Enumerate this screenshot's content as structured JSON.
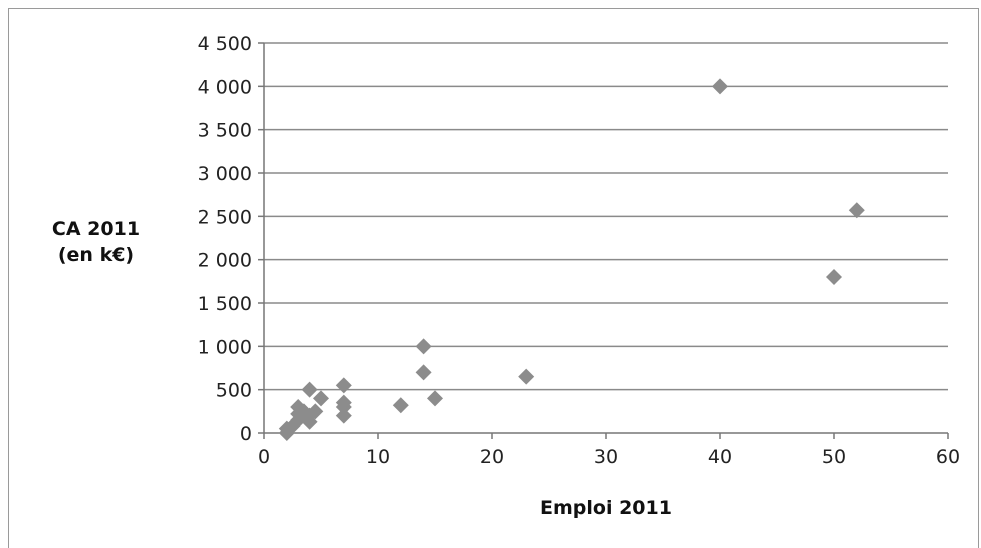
{
  "chart_data": {
    "type": "scatter",
    "title": "",
    "xlabel": "Emploi 2011",
    "ylabel": [
      "CA 2011",
      "(en k€)"
    ],
    "xlim": [
      0,
      60
    ],
    "ylim": [
      0,
      4500
    ],
    "x_ticks": [
      0,
      10,
      20,
      30,
      40,
      50,
      60
    ],
    "x_tick_labels": [
      "0",
      "10",
      "20",
      "30",
      "40",
      "50",
      "60"
    ],
    "y_ticks": [
      0,
      500,
      1000,
      1500,
      2000,
      2500,
      3000,
      3500,
      4000,
      4500
    ],
    "y_tick_labels": [
      "0",
      "500",
      "1 000",
      "1 500",
      "2 000",
      "2 500",
      "3 000",
      "3 500",
      "4 000",
      "4 500"
    ],
    "grid": "horizontal major gridlines",
    "legend": "none",
    "marker": "diamond",
    "marker_color": "#8c8c8c",
    "points": [
      {
        "x": 2,
        "y": 0
      },
      {
        "x": 2,
        "y": 50
      },
      {
        "x": 2.5,
        "y": 80
      },
      {
        "x": 3,
        "y": 150
      },
      {
        "x": 3,
        "y": 220
      },
      {
        "x": 3,
        "y": 300
      },
      {
        "x": 3.5,
        "y": 250
      },
      {
        "x": 4,
        "y": 130
      },
      {
        "x": 4,
        "y": 200
      },
      {
        "x": 4,
        "y": 500
      },
      {
        "x": 4.5,
        "y": 250
      },
      {
        "x": 5,
        "y": 400
      },
      {
        "x": 7,
        "y": 200
      },
      {
        "x": 7,
        "y": 300
      },
      {
        "x": 7,
        "y": 350
      },
      {
        "x": 7,
        "y": 550
      },
      {
        "x": 12,
        "y": 320
      },
      {
        "x": 14,
        "y": 700
      },
      {
        "x": 14,
        "y": 1000
      },
      {
        "x": 15,
        "y": 400
      },
      {
        "x": 23,
        "y": 650
      },
      {
        "x": 40,
        "y": 4000
      },
      {
        "x": 50,
        "y": 1800
      },
      {
        "x": 52,
        "y": 2570
      }
    ]
  }
}
